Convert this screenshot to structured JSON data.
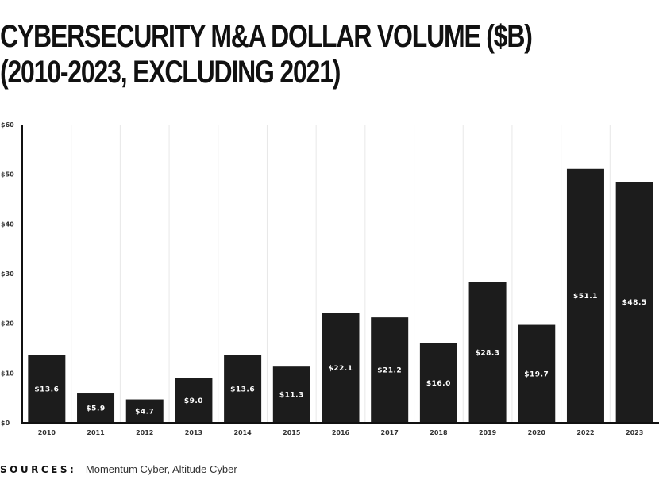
{
  "chart_data": {
    "type": "bar",
    "title_lines": [
      "CYBERSECURITY M&A DOLLAR VOLUME ($B)",
      "(2010-2023, EXCLUDING 2021)"
    ],
    "categories": [
      "2010",
      "2011",
      "2012",
      "2013",
      "2014",
      "2015",
      "2016",
      "2017",
      "2018",
      "2019",
      "2020",
      "2022",
      "2023"
    ],
    "values": [
      13.6,
      5.9,
      4.7,
      9.0,
      13.6,
      11.3,
      22.1,
      21.2,
      16.0,
      28.3,
      19.7,
      51.1,
      48.5
    ],
    "value_labels": [
      "$13.6",
      "$5.9",
      "$4.7",
      "$9.0",
      "$13.6",
      "$11.3",
      "$22.1",
      "$21.2",
      "$16.0",
      "$28.3",
      "$19.7",
      "$51.1",
      "$48.5"
    ],
    "y_ticks": [
      0,
      10,
      20,
      30,
      40,
      50,
      60
    ],
    "y_tick_labels": [
      "$0",
      "$10",
      "$20",
      "$30",
      "$40",
      "$50",
      "$60"
    ],
    "ylim": [
      0,
      60
    ],
    "xlabel": "",
    "ylabel": "",
    "grid": "vertical",
    "bar_color": "#1c1c1c",
    "grid_color": "#e8e8e8",
    "axis_color": "#111111"
  },
  "footer": {
    "sources_label": "SOURCES:",
    "sources_text": "Momentum Cyber, Altitude Cyber"
  }
}
